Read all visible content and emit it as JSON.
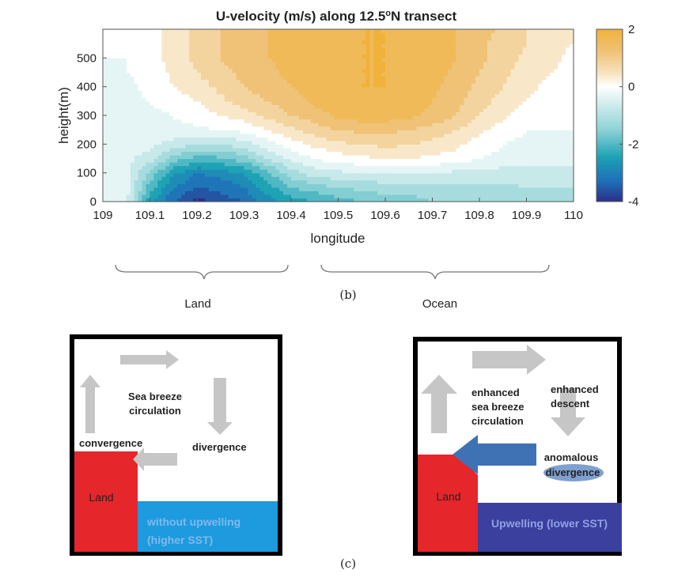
{
  "chart_data": {
    "type": "heatmap",
    "title_main": "U-velocity (m/s) along 12.5",
    "title_sup": "o",
    "title_end": "N transect",
    "xlabel": "longitude",
    "ylabel": "height(m)",
    "xlim": [
      109,
      110
    ],
    "ylim": [
      0,
      600
    ],
    "x_ticks": [
      "109",
      "109.1",
      "109.2",
      "109.3",
      "109.4",
      "109.5",
      "109.6",
      "109.7",
      "109.8",
      "109.9",
      "110"
    ],
    "y_ticks": [
      "0",
      "100",
      "200",
      "300",
      "400",
      "500"
    ],
    "colorbar": {
      "min": -4,
      "max": 2,
      "ticks": [
        "2",
        "0",
        "-2",
        "-4"
      ]
    },
    "x": [
      109.0,
      109.05,
      109.1,
      109.15,
      109.2,
      109.25,
      109.3,
      109.35,
      109.4,
      109.45,
      109.5,
      109.55,
      109.6,
      109.65,
      109.7,
      109.75,
      109.8,
      109.85,
      109.9,
      109.95,
      110.0
    ],
    "y": [
      0,
      50,
      100,
      150,
      200,
      250,
      300,
      350,
      400,
      450,
      500,
      550,
      600
    ],
    "z": [
      [
        -0.6,
        -0.5,
        -2.5,
        -3.4,
        -4.0,
        -3.6,
        -3.4,
        -2.8,
        -2.4,
        -2.2,
        -2.0,
        -1.8,
        -1.6,
        -1.6,
        -1.4,
        -1.4,
        -1.3,
        -1.3,
        -1.2,
        -1.2,
        -1.2
      ],
      [
        -0.5,
        -0.4,
        -2.0,
        -3.0,
        -3.4,
        -3.3,
        -3.0,
        -2.4,
        -1.8,
        -1.6,
        -1.4,
        -1.3,
        -1.2,
        -1.2,
        -1.1,
        -1.1,
        -1.1,
        -1.1,
        -1.0,
        -1.0,
        -1.0
      ],
      [
        -0.5,
        -0.5,
        -1.5,
        -2.5,
        -3.0,
        -2.8,
        -2.6,
        -1.9,
        -1.2,
        -0.8,
        -0.7,
        -0.6,
        -0.6,
        -0.6,
        -0.6,
        -0.7,
        -0.7,
        -0.8,
        -0.8,
        -0.8,
        -0.8
      ],
      [
        -0.5,
        -0.5,
        -0.8,
        -1.6,
        -2.0,
        -1.9,
        -1.6,
        -1.0,
        -0.5,
        -0.2,
        0.0,
        0.1,
        0.2,
        0.2,
        0.1,
        0.0,
        -0.2,
        -0.3,
        -0.4,
        -0.4,
        -0.4
      ],
      [
        -0.4,
        -0.4,
        -0.5,
        -0.8,
        -1.0,
        -1.0,
        -0.8,
        -0.4,
        0.0,
        0.3,
        0.5,
        0.6,
        0.7,
        0.6,
        0.5,
        0.3,
        0.0,
        -0.2,
        -0.3,
        -0.3,
        -0.3
      ],
      [
        -0.4,
        -0.4,
        -0.4,
        -0.3,
        -0.3,
        -0.2,
        -0.1,
        0.2,
        0.5,
        0.8,
        1.0,
        1.1,
        1.1,
        1.0,
        0.8,
        0.6,
        0.3,
        0.0,
        -0.2,
        -0.2,
        -0.2
      ],
      [
        -0.4,
        -0.4,
        -0.3,
        -0.2,
        0.0,
        0.2,
        0.4,
        0.7,
        1.0,
        1.2,
        1.5,
        1.6,
        1.6,
        1.5,
        1.3,
        1.0,
        0.6,
        0.3,
        0.0,
        -0.1,
        -0.1
      ],
      [
        -0.3,
        -0.3,
        -0.2,
        0.0,
        0.2,
        0.5,
        0.8,
        1.0,
        1.2,
        1.5,
        1.6,
        1.7,
        1.7,
        1.6,
        1.4,
        1.1,
        0.8,
        0.4,
        0.2,
        0.0,
        -0.1
      ],
      [
        -0.3,
        -0.3,
        -0.1,
        0.2,
        0.4,
        0.7,
        1.0,
        1.2,
        1.4,
        1.6,
        1.7,
        1.8,
        1.8,
        1.7,
        1.5,
        1.2,
        0.9,
        0.6,
        0.3,
        0.1,
        0.0
      ],
      [
        -0.3,
        -0.2,
        -0.1,
        0.3,
        0.6,
        0.9,
        1.1,
        1.3,
        1.5,
        1.6,
        1.7,
        1.8,
        1.8,
        1.7,
        1.6,
        1.3,
        1.0,
        0.7,
        0.4,
        0.2,
        0.1
      ],
      [
        -0.2,
        -0.2,
        0.0,
        0.4,
        0.7,
        1.0,
        1.2,
        1.4,
        1.5,
        1.6,
        1.7,
        1.8,
        1.8,
        1.7,
        1.6,
        1.4,
        1.1,
        0.8,
        0.5,
        0.3,
        0.1
      ],
      [
        -0.2,
        -0.2,
        0.0,
        0.4,
        0.7,
        1.0,
        1.2,
        1.4,
        1.5,
        1.6,
        1.7,
        1.8,
        1.8,
        1.7,
        1.6,
        1.4,
        1.1,
        0.8,
        0.6,
        0.3,
        0.2
      ],
      [
        -0.2,
        -0.2,
        0.0,
        0.4,
        0.7,
        1.0,
        1.2,
        1.4,
        1.5,
        1.6,
        1.7,
        1.8,
        1.8,
        1.7,
        1.6,
        1.4,
        1.2,
        0.9,
        0.6,
        0.4,
        0.2
      ]
    ]
  },
  "regions": {
    "land": "Land",
    "ocean": "Ocean"
  },
  "caption_b": "(b)",
  "caption_c": "(c)",
  "diagram_left": {
    "circulation": [
      "Sea breeze",
      "circulation"
    ],
    "convergence": "convergence",
    "divergence": "divergence",
    "land": "Land",
    "sea": [
      "without upwelling",
      "(higher SST)"
    ]
  },
  "diagram_right": {
    "circulation": [
      "enhanced",
      "sea breeze",
      "circulation"
    ],
    "descent": [
      "enhanced",
      "descent"
    ],
    "anomalous": "anomalous",
    "divergence": "divergence",
    "land": "Land",
    "sea": "Upwelling (lower SST)"
  },
  "colors": {
    "land": "#e5262b",
    "sea_left": "#1e9ade",
    "sea_right": "#3b3f9d",
    "arrow_gray": "#c6c6c6",
    "arrow_blue": "#3f72b5",
    "ellipse": "#7f9fd0"
  }
}
